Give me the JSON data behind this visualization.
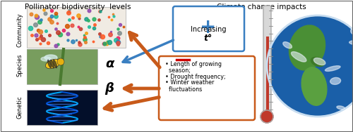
{
  "title_left": "Pollinator biodiversity  levels",
  "title_right": "Climate change impacts",
  "left_labels": [
    "Community",
    "Species",
    "Genetic"
  ],
  "greek_alpha": "α",
  "greek_beta": "β",
  "blue_box_plus": "+",
  "blue_box_text1": "Increasing",
  "blue_box_text2": "t°",
  "orange_box_minus_color": "#cc0000",
  "orange_box_line1": "• Length of growing",
  "orange_box_line2": "  season;",
  "orange_box_line3": "• Drought frequency;",
  "orange_box_line4": "• Winter weather",
  "orange_box_line5": "  fluctuations",
  "arrow_color_blue": "#3a7fc1",
  "arrow_color_orange": "#c85a1a",
  "box_blue_edge": "#3a7fc1",
  "box_orange_edge": "#c85a1a",
  "bg_color": "#ffffff",
  "text_color": "#000000",
  "thermometer_red": "#c0392b",
  "therm_gray": "#d8d8d8",
  "therm_edge": "#aaaaaa"
}
